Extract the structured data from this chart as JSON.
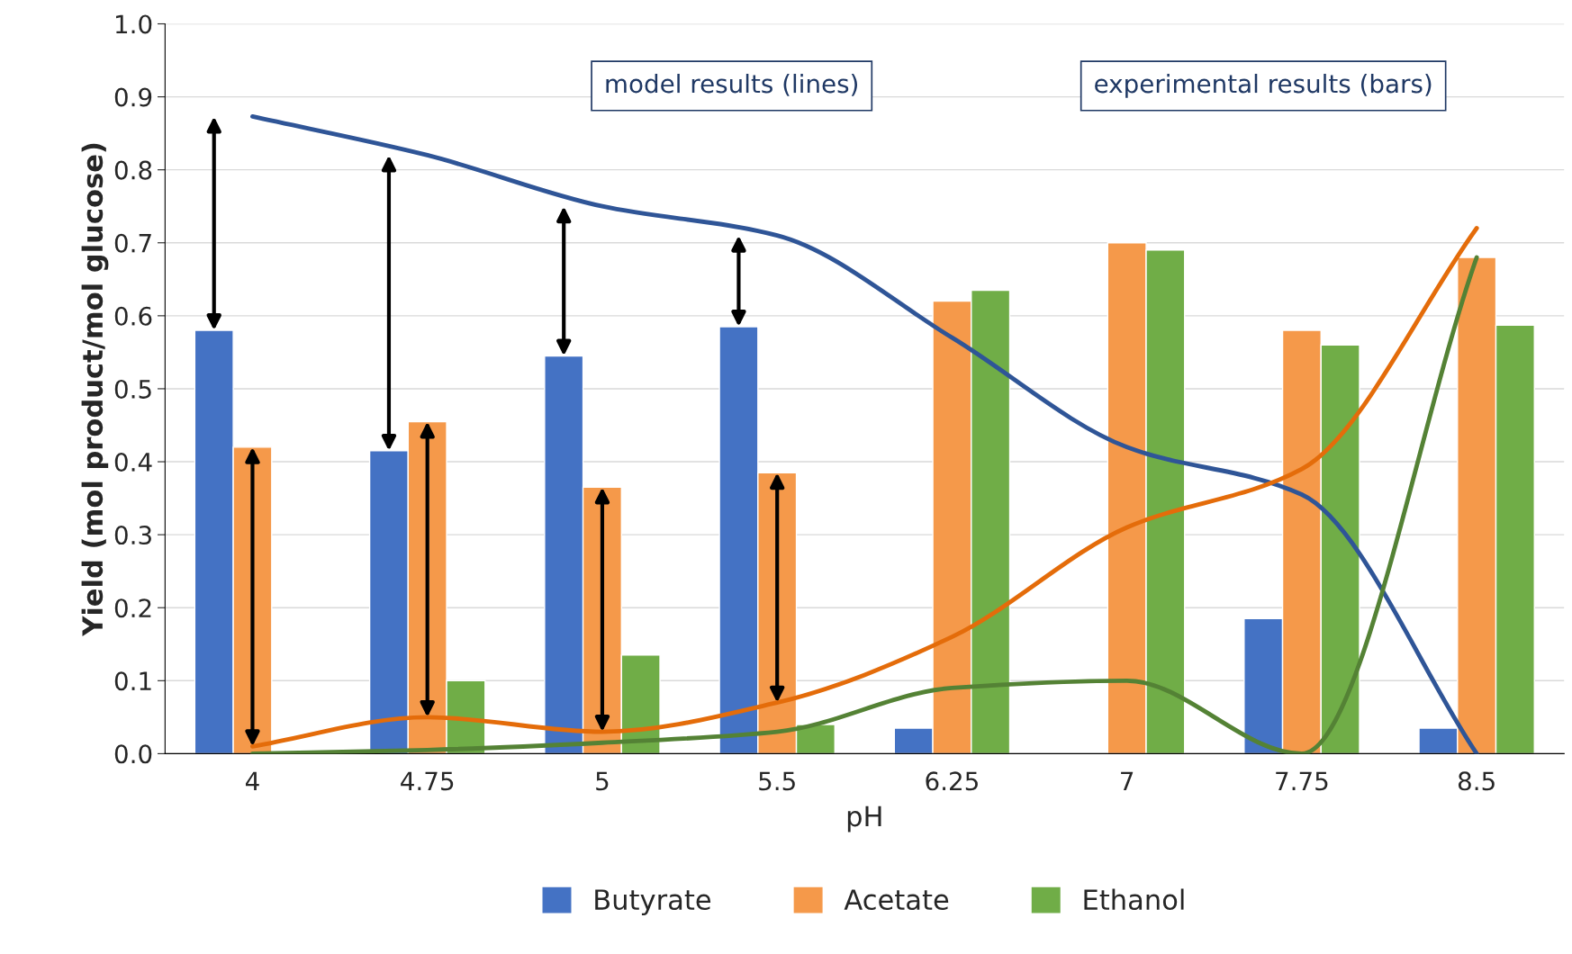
{
  "chart_data": {
    "type": "bar",
    "categories": [
      "4",
      "4.75",
      "5",
      "5.5",
      "6.25",
      "7",
      "7.75",
      "8.5"
    ],
    "xlabel": "pH",
    "ylabel": "Yield (mol product/mol glucose)",
    "ylim": [
      0,
      1
    ],
    "yticks": [
      {
        "value": 0,
        "label": "0.0"
      },
      {
        "value": 0.1,
        "label": "0.1"
      },
      {
        "value": 0.2,
        "label": "0.2"
      },
      {
        "value": 0.3,
        "label": "0.3"
      },
      {
        "value": 0.4,
        "label": "0.4"
      },
      {
        "value": 0.5,
        "label": "0.5"
      },
      {
        "value": 0.6,
        "label": "0.6"
      },
      {
        "value": 0.7,
        "label": "0.7"
      },
      {
        "value": 0.8,
        "label": "0.8"
      },
      {
        "value": 0.9,
        "label": "0.9"
      },
      {
        "value": 1,
        "label": "1.0"
      }
    ],
    "grid": "y",
    "legend": "bottom",
    "annotations": [
      "model results (lines)",
      "experimental results (bars)"
    ],
    "series": [
      {
        "name": "Butyrate",
        "color": "#4472c4",
        "values": [
          0.58,
          0.415,
          0.545,
          0.585,
          0.035,
          null,
          0.185,
          0.035
        ]
      },
      {
        "name": "Acetate",
        "color": "#f5994a",
        "values": [
          0.42,
          0.455,
          0.365,
          0.385,
          0.62,
          0.7,
          0.58,
          0.68
        ]
      },
      {
        "name": "Ethanol",
        "color": "#70ad47",
        "values": [
          null,
          0.1,
          0.135,
          0.04,
          0.635,
          0.69,
          0.56,
          0.587
        ]
      },
      {
        "type": "line",
        "color": "#2f5597",
        "values": [
          0.873,
          0.82,
          0.75,
          0.71,
          0.57,
          0.42,
          0.355,
          0.0
        ]
      },
      {
        "type": "line",
        "color": "#e46c0a",
        "values": [
          0.01,
          0.05,
          0.03,
          0.07,
          0.16,
          0.31,
          0.39,
          0.72
        ]
      },
      {
        "type": "line",
        "color": "#548235",
        "values": [
          0.0,
          0.005,
          0.015,
          0.03,
          0.09,
          0.1,
          0.0,
          0.68
        ]
      }
    ]
  }
}
